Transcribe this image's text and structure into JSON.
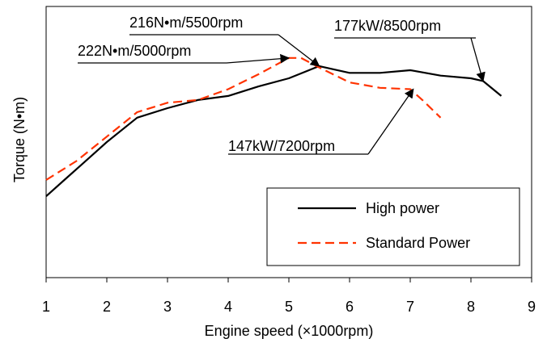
{
  "chart_data": {
    "type": "line",
    "xlabel": "Engine speed (×1000rpm)",
    "ylabel": "Torque (N•m)",
    "xlim": [
      1,
      9
    ],
    "x_ticks": [
      1,
      2,
      3,
      4,
      5,
      6,
      7,
      8,
      9
    ],
    "y_ticks_shown": false,
    "grid": false,
    "legend": "bottom-right",
    "series": [
      {
        "name": "High power",
        "color": "#000000",
        "dash": "solid",
        "points": [
          [
            1.0,
            0.3
          ],
          [
            1.3,
            0.36
          ],
          [
            1.6,
            0.42
          ],
          [
            2.0,
            0.5
          ],
          [
            2.5,
            0.59
          ],
          [
            3.0,
            0.625
          ],
          [
            3.5,
            0.655
          ],
          [
            4.0,
            0.67
          ],
          [
            4.5,
            0.705
          ],
          [
            5.0,
            0.735
          ],
          [
            5.5,
            0.78
          ],
          [
            5.7,
            0.77
          ],
          [
            6.0,
            0.755
          ],
          [
            6.5,
            0.755
          ],
          [
            7.0,
            0.765
          ],
          [
            7.5,
            0.745
          ],
          [
            8.0,
            0.735
          ],
          [
            8.2,
            0.725
          ],
          [
            8.5,
            0.67
          ]
        ]
      },
      {
        "name": "Standard Power",
        "color": "#ff3300",
        "dash": "dashed",
        "points": [
          [
            1.0,
            0.36
          ],
          [
            1.5,
            0.43
          ],
          [
            2.0,
            0.52
          ],
          [
            2.5,
            0.61
          ],
          [
            3.0,
            0.645
          ],
          [
            3.5,
            0.655
          ],
          [
            4.0,
            0.695
          ],
          [
            4.5,
            0.75
          ],
          [
            5.0,
            0.81
          ],
          [
            5.2,
            0.81
          ],
          [
            5.5,
            0.775
          ],
          [
            6.0,
            0.72
          ],
          [
            6.5,
            0.7
          ],
          [
            7.0,
            0.695
          ],
          [
            7.2,
            0.655
          ],
          [
            7.5,
            0.59
          ]
        ]
      }
    ],
    "annotations": [
      {
        "text": "216N•m/5500rpm",
        "x": 5.5,
        "y": 0.78,
        "anchor": "upper"
      },
      {
        "text": "222N•m/5000rpm",
        "x": 5.0,
        "y": 0.81,
        "anchor": "upper"
      },
      {
        "text": "177kW/8500rpm",
        "x": 8.2,
        "y": 0.725,
        "anchor": "upper"
      },
      {
        "text": "147kW/7200rpm",
        "x": 7.05,
        "y": 0.695,
        "anchor": "lower"
      }
    ]
  }
}
